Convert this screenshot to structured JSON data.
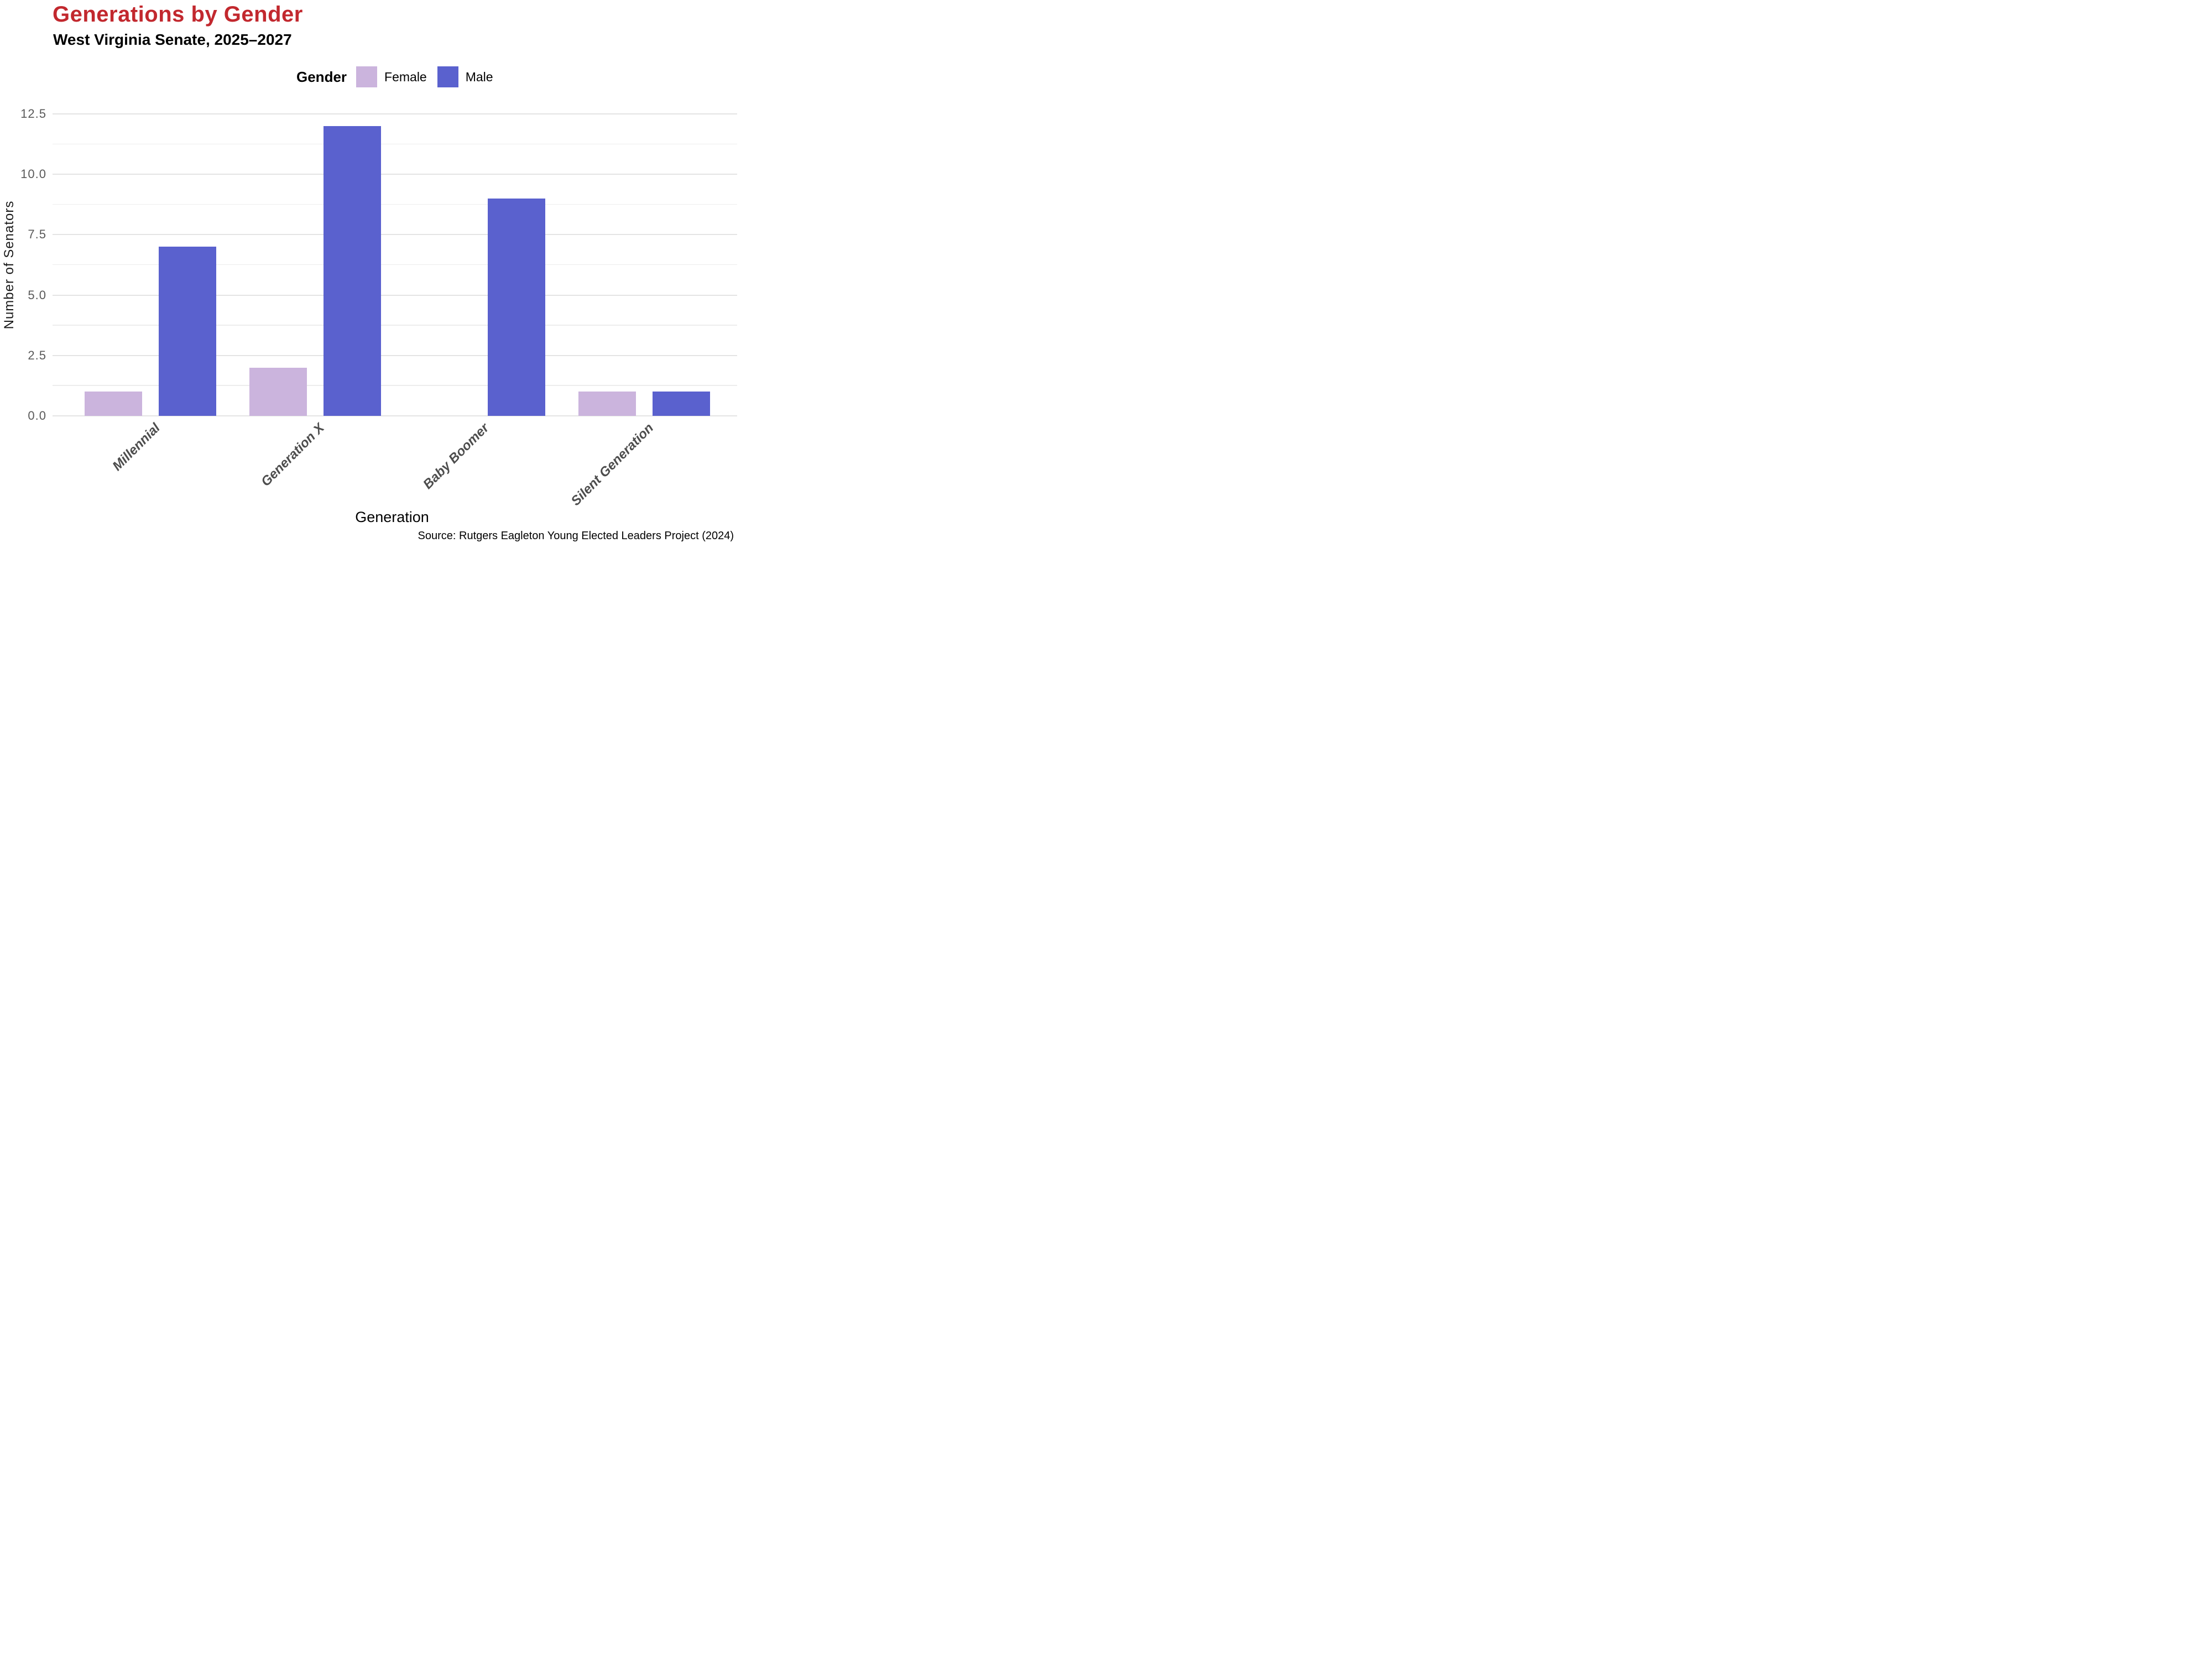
{
  "header": {
    "title": "Generations by Gender",
    "subtitle": "West Virginia Senate, 2025–2027"
  },
  "chart_data": {
    "type": "bar",
    "title": "Generations by Gender",
    "subtitle": "West Virginia Senate, 2025–2027",
    "categories": [
      "Millennial",
      "Generation X",
      "Baby Boomer",
      "Silent Generation"
    ],
    "series": [
      {
        "name": "Female",
        "color": "#cbb4dd",
        "values": [
          1,
          2,
          0,
          1
        ]
      },
      {
        "name": "Male",
        "color": "#5a61ce",
        "values": [
          7,
          12,
          9,
          1
        ]
      }
    ],
    "legend_title": "Gender",
    "legend_position": "top",
    "xlabel": "Generation",
    "ylabel": "Number of Senators",
    "ylim": [
      0,
      12.5
    ],
    "yticks": [
      0.0,
      2.5,
      5.0,
      7.5,
      10.0,
      12.5
    ],
    "ytick_labels": [
      "0.0",
      "2.5",
      "5.0",
      "7.5",
      "10.0",
      "12.5"
    ],
    "minor_grid_step": 1.25,
    "grid": true,
    "bar_orientation": "vertical",
    "dodged": true
  },
  "source": "Source: Rutgers Eagleton Young Elected Leaders Project (2024)",
  "colors": {
    "title_red": "#c2282e",
    "female": "#cbb4dd",
    "male": "#5a61ce",
    "grid_major": "#e4e4e4",
    "grid_minor": "#ededed",
    "y_tick_text": "#595959",
    "x_tick_text": "#4d4d4d",
    "background": "#ffffff"
  }
}
